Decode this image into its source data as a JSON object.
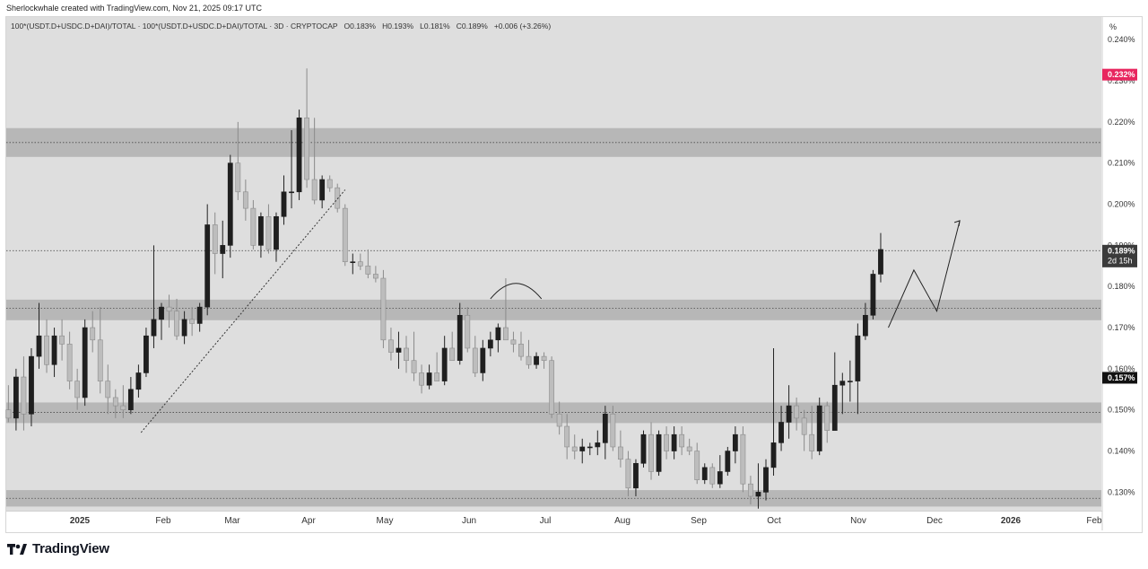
{
  "header": {
    "attribution": "Sherlockwhale created with TradingView.com, Nov 21, 2025 09:17 UTC"
  },
  "legend": {
    "symbol": "100*(USDT.D+USDC.D+DAI)/TOTAL",
    "symbol_repeat": "100*(USDT.D+USDC.D+DAI)/TOTAL",
    "interval": "3D",
    "exchange": "CRYPTOCAP",
    "open": "O0.183%",
    "high": "H0.193%",
    "low": "L0.181%",
    "close": "C0.189%",
    "change": "+0.006 (+3.26%)"
  },
  "scale_button": "%",
  "price_labels": {
    "red": "0.232%",
    "current": "0.189%",
    "countdown": "2d 15h",
    "black": "0.157%"
  },
  "footer": {
    "brand": "TradingView"
  },
  "chart_data": {
    "type": "candlestick",
    "y_unit": "%",
    "ylim": [
      0.1255,
      0.2455
    ],
    "y_ticks": [
      "0.130%",
      "0.140%",
      "0.150%",
      "0.160%",
      "0.170%",
      "0.180%",
      "0.190%",
      "0.200%",
      "0.210%",
      "0.220%",
      "0.230%",
      "0.240%"
    ],
    "x_ticks": [
      "2025",
      "Feb",
      "Mar",
      "Apr",
      "May",
      "Jun",
      "Jul",
      "Aug",
      "Sep",
      "Oct",
      "Nov",
      "Dec",
      "2026",
      "Feb"
    ],
    "x_start": "2024-12-04",
    "interval_days": 3,
    "grid": false,
    "zones": [
      [
        0.2115,
        0.2185
      ],
      [
        0.1718,
        0.1768
      ],
      [
        0.1468,
        0.1518
      ],
      [
        0.1265,
        0.1305
      ]
    ],
    "candles": [
      [
        0.15,
        0.156,
        0.147,
        0.148
      ],
      [
        0.148,
        0.16,
        0.145,
        0.158
      ],
      [
        0.158,
        0.163,
        0.145,
        0.149
      ],
      [
        0.149,
        0.165,
        0.146,
        0.163
      ],
      [
        0.163,
        0.176,
        0.16,
        0.168
      ],
      [
        0.168,
        0.172,
        0.159,
        0.161
      ],
      [
        0.161,
        0.17,
        0.158,
        0.168
      ],
      [
        0.168,
        0.172,
        0.162,
        0.166
      ],
      [
        0.166,
        0.169,
        0.155,
        0.157
      ],
      [
        0.157,
        0.16,
        0.15,
        0.153
      ],
      [
        0.153,
        0.172,
        0.151,
        0.17
      ],
      [
        0.17,
        0.174,
        0.164,
        0.167
      ],
      [
        0.167,
        0.175,
        0.154,
        0.157
      ],
      [
        0.157,
        0.161,
        0.149,
        0.153
      ],
      [
        0.153,
        0.155,
        0.148,
        0.151
      ],
      [
        0.151,
        0.156,
        0.148,
        0.15
      ],
      [
        0.15,
        0.158,
        0.149,
        0.155
      ],
      [
        0.155,
        0.161,
        0.153,
        0.159
      ],
      [
        0.159,
        0.17,
        0.158,
        0.168
      ],
      [
        0.168,
        0.19,
        0.165,
        0.172
      ],
      [
        0.172,
        0.176,
        0.167,
        0.175
      ],
      [
        0.175,
        0.178,
        0.17,
        0.174
      ],
      [
        0.174,
        0.177,
        0.167,
        0.168
      ],
      [
        0.168,
        0.174,
        0.166,
        0.172
      ],
      [
        0.172,
        0.175,
        0.168,
        0.171
      ],
      [
        0.171,
        0.176,
        0.169,
        0.175
      ],
      [
        0.175,
        0.2,
        0.173,
        0.195
      ],
      [
        0.195,
        0.198,
        0.183,
        0.188
      ],
      [
        0.188,
        0.196,
        0.182,
        0.19
      ],
      [
        0.19,
        0.212,
        0.187,
        0.21
      ],
      [
        0.21,
        0.22,
        0.201,
        0.203
      ],
      [
        0.203,
        0.206,
        0.196,
        0.199
      ],
      [
        0.199,
        0.201,
        0.189,
        0.19
      ],
      [
        0.19,
        0.198,
        0.187,
        0.197
      ],
      [
        0.197,
        0.2,
        0.188,
        0.189
      ],
      [
        0.189,
        0.198,
        0.186,
        0.197
      ],
      [
        0.197,
        0.207,
        0.195,
        0.203
      ],
      [
        0.203,
        0.218,
        0.199,
        0.203
      ],
      [
        0.203,
        0.223,
        0.201,
        0.221
      ],
      [
        0.221,
        0.233,
        0.204,
        0.206
      ],
      [
        0.206,
        0.221,
        0.2,
        0.201
      ],
      [
        0.201,
        0.207,
        0.199,
        0.206
      ],
      [
        0.206,
        0.207,
        0.203,
        0.204
      ],
      [
        0.204,
        0.205,
        0.198,
        0.199
      ],
      [
        0.199,
        0.2,
        0.185,
        0.186
      ],
      [
        0.186,
        0.188,
        0.183,
        0.186
      ],
      [
        0.186,
        0.188,
        0.184,
        0.185
      ],
      [
        0.185,
        0.189,
        0.182,
        0.183
      ],
      [
        0.183,
        0.185,
        0.181,
        0.182
      ],
      [
        0.182,
        0.184,
        0.165,
        0.167
      ],
      [
        0.167,
        0.17,
        0.162,
        0.164
      ],
      [
        0.164,
        0.169,
        0.16,
        0.165
      ],
      [
        0.165,
        0.168,
        0.159,
        0.162
      ],
      [
        0.162,
        0.169,
        0.157,
        0.159
      ],
      [
        0.159,
        0.161,
        0.154,
        0.156
      ],
      [
        0.156,
        0.161,
        0.155,
        0.159
      ],
      [
        0.159,
        0.164,
        0.157,
        0.157
      ],
      [
        0.157,
        0.168,
        0.156,
        0.165
      ],
      [
        0.165,
        0.169,
        0.162,
        0.162
      ],
      [
        0.162,
        0.176,
        0.161,
        0.173
      ],
      [
        0.173,
        0.175,
        0.164,
        0.165
      ],
      [
        0.165,
        0.168,
        0.158,
        0.159
      ],
      [
        0.159,
        0.167,
        0.157,
        0.165
      ],
      [
        0.165,
        0.169,
        0.163,
        0.167
      ],
      [
        0.167,
        0.171,
        0.164,
        0.17
      ],
      [
        0.17,
        0.182,
        0.167,
        0.167
      ],
      [
        0.167,
        0.169,
        0.164,
        0.166
      ],
      [
        0.166,
        0.169,
        0.162,
        0.163
      ],
      [
        0.163,
        0.167,
        0.16,
        0.161
      ],
      [
        0.161,
        0.164,
        0.16,
        0.163
      ],
      [
        0.163,
        0.164,
        0.16,
        0.162
      ],
      [
        0.162,
        0.163,
        0.148,
        0.149
      ],
      [
        0.149,
        0.152,
        0.144,
        0.146
      ],
      [
        0.146,
        0.149,
        0.138,
        0.141
      ],
      [
        0.141,
        0.144,
        0.138,
        0.14
      ],
      [
        0.14,
        0.143,
        0.137,
        0.141
      ],
      [
        0.141,
        0.142,
        0.139,
        0.141
      ],
      [
        0.141,
        0.145,
        0.139,
        0.142
      ],
      [
        0.142,
        0.151,
        0.138,
        0.149
      ],
      [
        0.149,
        0.151,
        0.14,
        0.141
      ],
      [
        0.141,
        0.145,
        0.136,
        0.138
      ],
      [
        0.138,
        0.14,
        0.129,
        0.131
      ],
      [
        0.131,
        0.138,
        0.129,
        0.137
      ],
      [
        0.137,
        0.145,
        0.136,
        0.144
      ],
      [
        0.144,
        0.147,
        0.133,
        0.135
      ],
      [
        0.135,
        0.145,
        0.134,
        0.144
      ],
      [
        0.144,
        0.146,
        0.138,
        0.14
      ],
      [
        0.14,
        0.146,
        0.138,
        0.144
      ],
      [
        0.144,
        0.146,
        0.139,
        0.141
      ],
      [
        0.141,
        0.143,
        0.139,
        0.14
      ],
      [
        0.14,
        0.142,
        0.132,
        0.133
      ],
      [
        0.133,
        0.137,
        0.132,
        0.136
      ],
      [
        0.136,
        0.137,
        0.131,
        0.132
      ],
      [
        0.132,
        0.139,
        0.131,
        0.135
      ],
      [
        0.135,
        0.141,
        0.134,
        0.14
      ],
      [
        0.14,
        0.146,
        0.137,
        0.144
      ],
      [
        0.144,
        0.146,
        0.13,
        0.132
      ],
      [
        0.132,
        0.134,
        0.127,
        0.129
      ],
      [
        0.129,
        0.137,
        0.126,
        0.13
      ],
      [
        0.13,
        0.138,
        0.128,
        0.136
      ],
      [
        0.136,
        0.165,
        0.134,
        0.142
      ],
      [
        0.142,
        0.151,
        0.14,
        0.147
      ],
      [
        0.147,
        0.156,
        0.143,
        0.151
      ],
      [
        0.151,
        0.153,
        0.145,
        0.148
      ],
      [
        0.148,
        0.15,
        0.14,
        0.144
      ],
      [
        0.144,
        0.151,
        0.138,
        0.14
      ],
      [
        0.14,
        0.153,
        0.139,
        0.151
      ],
      [
        0.151,
        0.152,
        0.142,
        0.145
      ],
      [
        0.145,
        0.164,
        0.145,
        0.156
      ],
      [
        0.156,
        0.159,
        0.149,
        0.157
      ],
      [
        0.157,
        0.162,
        0.152,
        0.157
      ],
      [
        0.157,
        0.171,
        0.149,
        0.168
      ],
      [
        0.168,
        0.176,
        0.167,
        0.173
      ],
      [
        0.173,
        0.184,
        0.172,
        0.183
      ],
      [
        0.183,
        0.193,
        0.181,
        0.189
      ]
    ],
    "annotations": {
      "arc": [
        [
          "2025-06-11",
          0.177
        ],
        [
          "2025-06-21",
          0.1819
        ],
        [
          "2025-07-01",
          0.177
        ]
      ],
      "dotted_trendline": [
        [
          "2025-01-25",
          0.1445
        ],
        [
          "2025-04-15",
          0.2035
        ]
      ],
      "projection_path": [
        [
          "2025-11-14",
          0.17
        ],
        [
          "2025-11-24",
          0.184
        ],
        [
          "2025-12-03",
          0.174
        ],
        [
          "2025-12-12",
          0.196
        ]
      ],
      "reference_lines": [
        0.215,
        0.1747,
        0.1494,
        0.1285,
        0.1887
      ]
    }
  }
}
